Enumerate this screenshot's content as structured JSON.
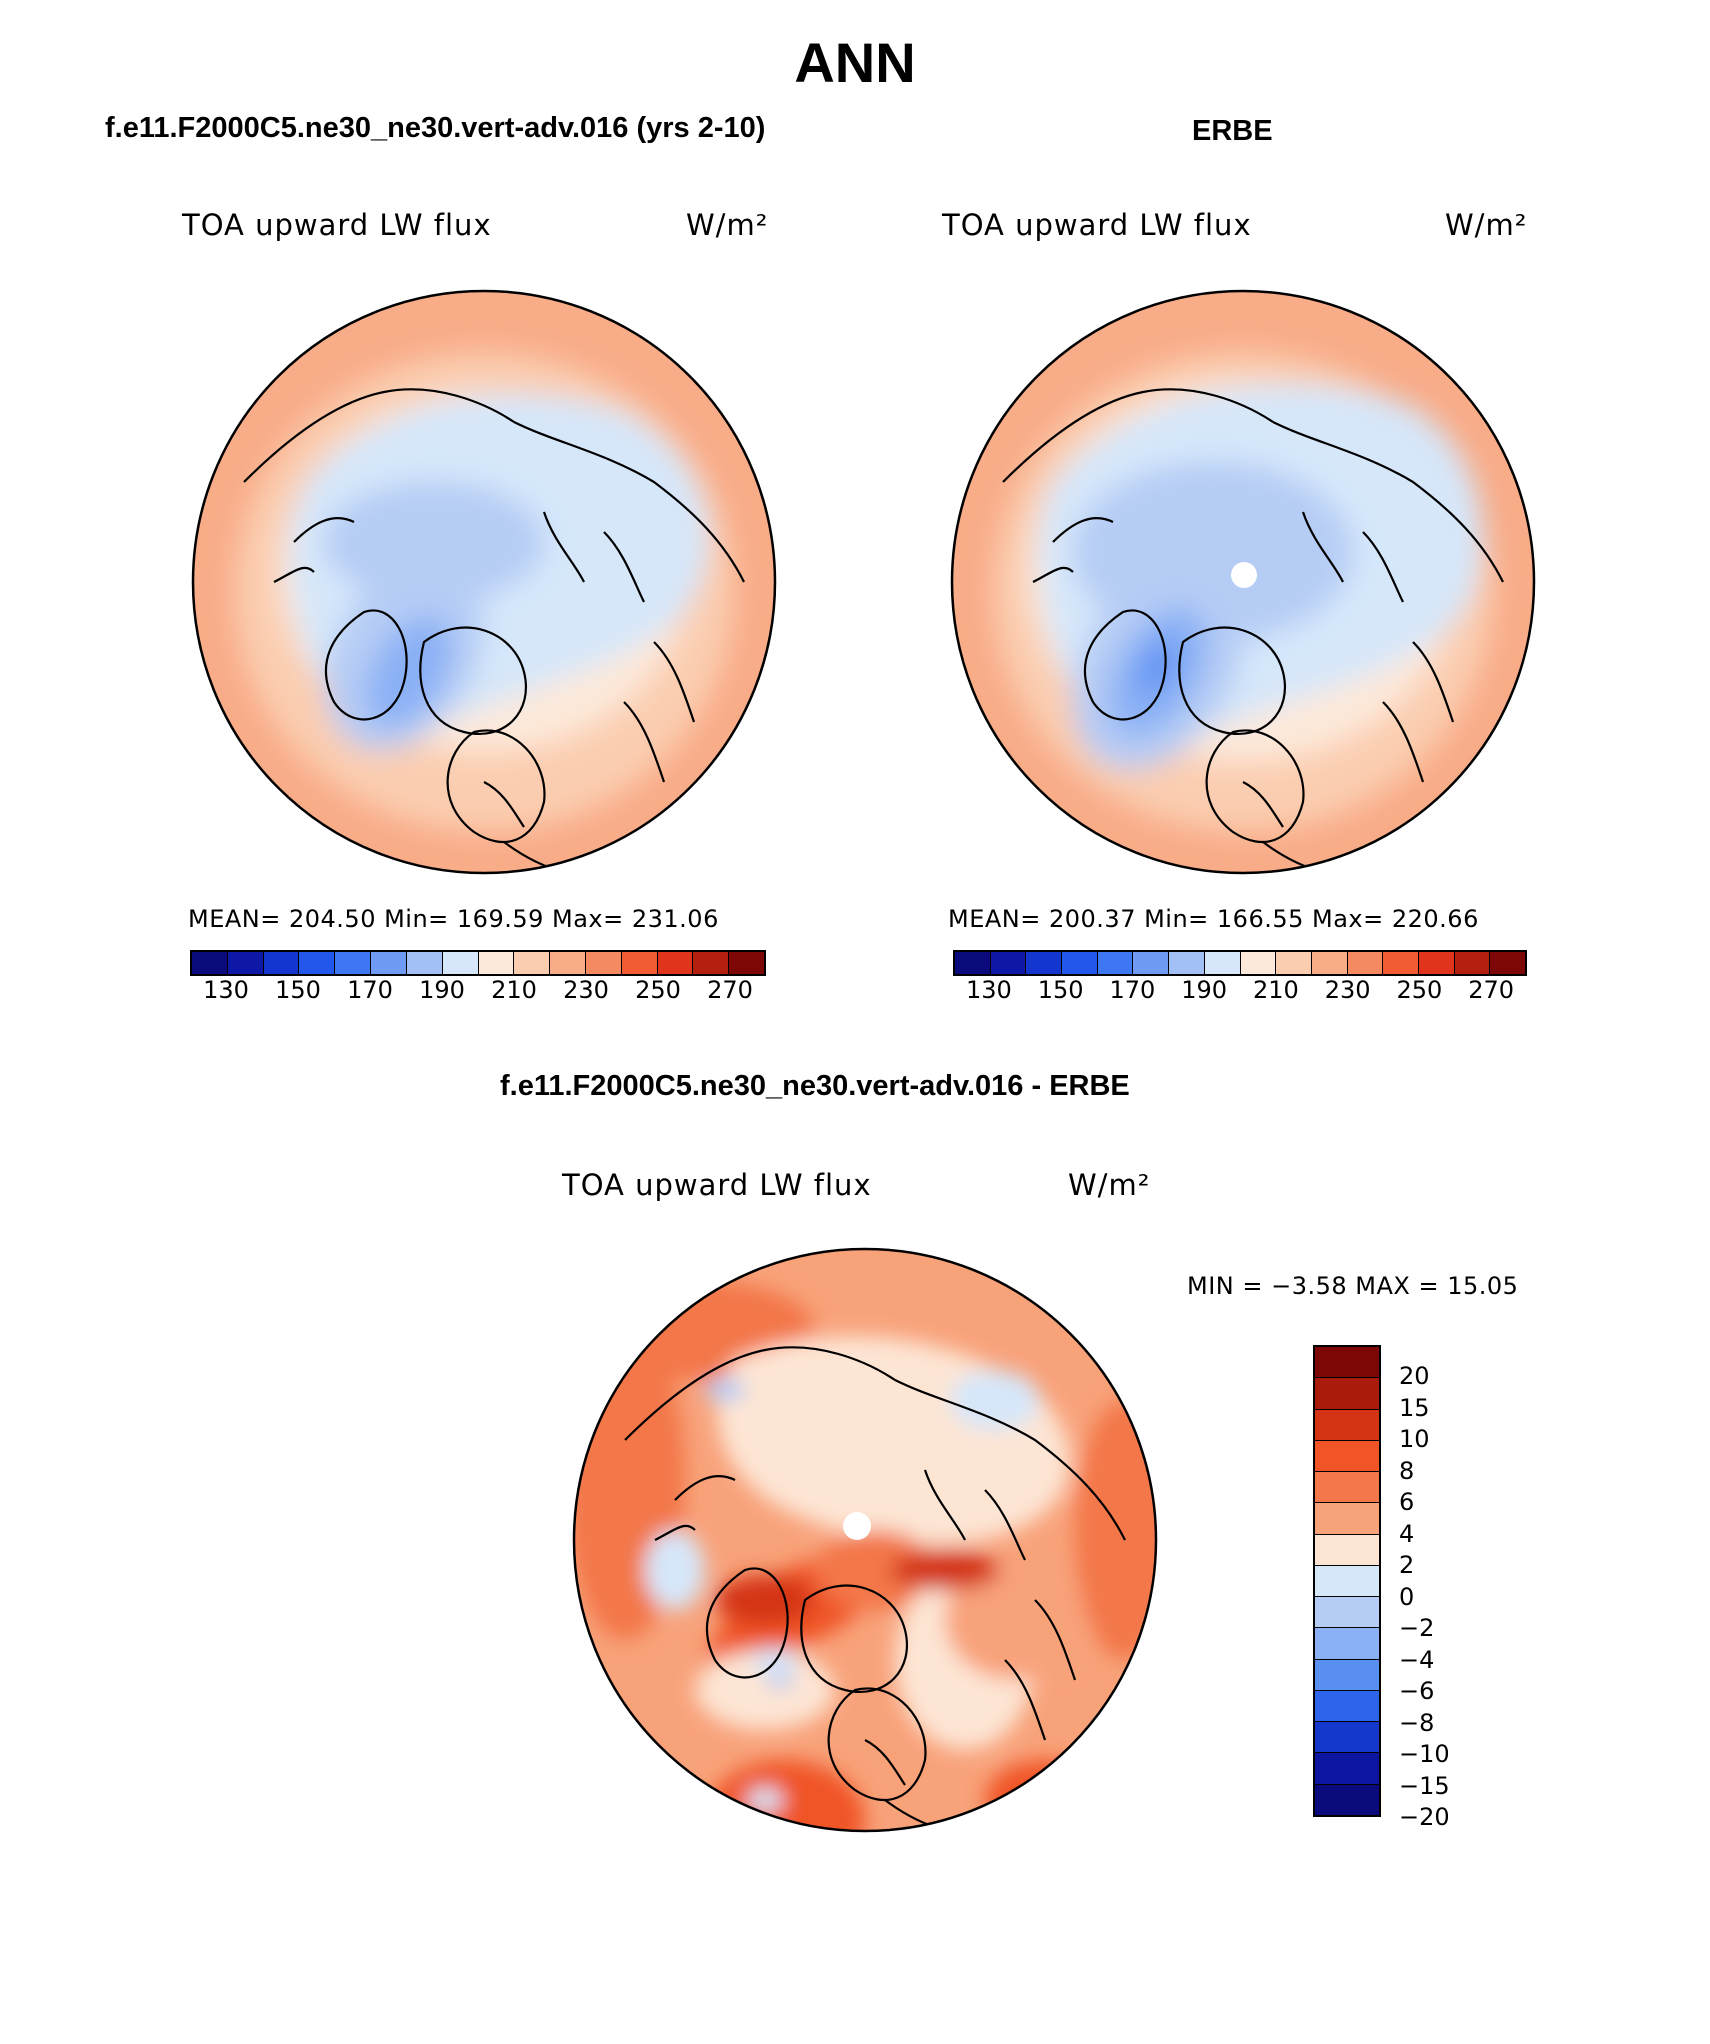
{
  "page": {
    "title": "ANN"
  },
  "panels": [
    {
      "title": "f.e11.F2000C5.ne30_ne30.vert-adv.016 (yrs 2-10)",
      "variable": "TOA upward LW flux",
      "units": "W/m²",
      "stats": "MEAN= 204.50   Min= 169.59   Max= 231.06",
      "polar_hole": false
    },
    {
      "title": "ERBE",
      "variable": "TOA upward LW flux",
      "units": "W/m²",
      "stats": "MEAN= 200.37   Min= 166.55   Max= 220.66",
      "polar_hole": true
    }
  ],
  "top_colorbar": {
    "colors": [
      "#0a0a7d",
      "#0d19a6",
      "#1336cf",
      "#2257eb",
      "#3d78f2",
      "#6f9bf5",
      "#a3c0f5",
      "#d6e7fa",
      "#fde9da",
      "#fbcdb0",
      "#f8ac88",
      "#f5895f",
      "#f25c35",
      "#e0351c",
      "#b3200f",
      "#7d0606"
    ],
    "tick_labels": [
      "130",
      "150",
      "170",
      "190",
      "210",
      "230",
      "250",
      "270"
    ]
  },
  "diff_panel": {
    "title": "f.e11.F2000C5.ne30_ne30.vert-adv.016 - ERBE",
    "variable": "TOA upward LW flux",
    "units": "W/m²",
    "min_max": "MIN =   −3.58 MAX =   15.05"
  },
  "diff_colorbar": {
    "colors": [
      "#7d0606",
      "#ab1b0c",
      "#d43413",
      "#f05427",
      "#f3774a",
      "#f8a27a",
      "#fde5d4",
      "#d6e7fa",
      "#b5ccf5",
      "#8ab0f5",
      "#5a8ff2",
      "#2d64eb",
      "#1438cc",
      "#0b15a0",
      "#0a0a7d"
    ],
    "labels": [
      "20",
      "15",
      "10",
      "8",
      "6",
      "4",
      "2",
      "0",
      "−2",
      "−4",
      "−6",
      "−8",
      "−10",
      "−15",
      "−20"
    ]
  }
}
